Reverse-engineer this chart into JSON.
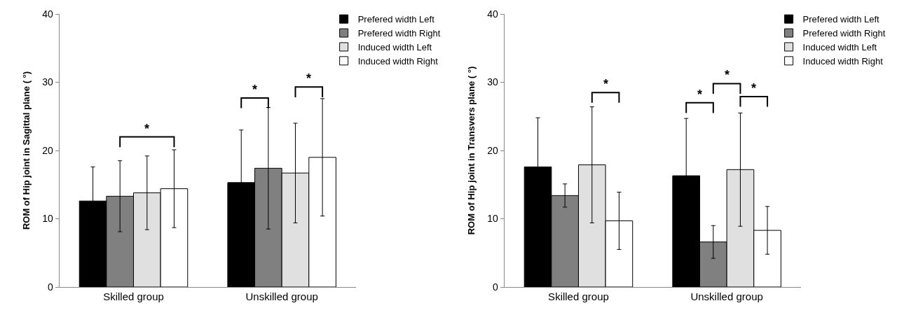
{
  "chart_data": [
    {
      "type": "bar",
      "ylabel": "ROM of Hip joint in Sagittal plane ( °)",
      "categories": [
        "Skilled group",
        "Unskilled group"
      ],
      "ylim": [
        0,
        40
      ],
      "yticks": [
        0,
        10,
        20,
        30,
        40
      ],
      "grid": false,
      "legend": "top right",
      "series": [
        {
          "name": "Prefered width Left",
          "color": "#000000",
          "values": [
            12.6,
            15.3
          ],
          "errors": [
            5.0,
            7.7
          ]
        },
        {
          "name": "Prefered width Right",
          "color": "#808080",
          "values": [
            13.3,
            17.4
          ],
          "errors": [
            5.2,
            8.9
          ]
        },
        {
          "name": "Induced width Left",
          "color": "#e0e0e0",
          "values": [
            13.8,
            16.7
          ],
          "errors": [
            5.4,
            7.3
          ]
        },
        {
          "name": "Induced width Right",
          "color": "#ffffff",
          "values": [
            14.4,
            19.0
          ],
          "errors": [
            5.7,
            8.6
          ]
        }
      ],
      "annotations": [
        "*",
        "*",
        "*"
      ]
    },
    {
      "type": "bar",
      "ylabel": "ROM of Hip joint in Transvers plane ( °)",
      "categories": [
        "Skilled group",
        "Unskilled group"
      ],
      "ylim": [
        0,
        40
      ],
      "yticks": [
        0,
        10,
        20,
        30,
        40
      ],
      "grid": false,
      "legend": "top right",
      "series": [
        {
          "name": "Prefered width Left",
          "color": "#000000",
          "values": [
            17.6,
            16.3
          ],
          "errors": [
            7.2,
            8.4
          ]
        },
        {
          "name": "Prefered width Right",
          "color": "#808080",
          "values": [
            13.4,
            6.6
          ],
          "errors": [
            1.7,
            2.4
          ]
        },
        {
          "name": "Induced width Left",
          "color": "#e0e0e0",
          "values": [
            17.9,
            17.2
          ],
          "errors": [
            8.5,
            8.3
          ]
        },
        {
          "name": "Induced width Right",
          "color": "#ffffff",
          "values": [
            9.7,
            8.3
          ],
          "errors": [
            4.2,
            3.5
          ]
        }
      ],
      "annotations": [
        "*",
        "*",
        "*",
        "*"
      ]
    }
  ]
}
